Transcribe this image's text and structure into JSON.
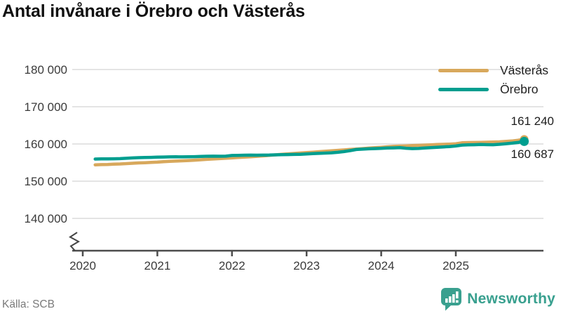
{
  "title": "Antal invånare i Örebro och Västerås",
  "source": "Källa: SCB",
  "brand": {
    "name": "Newsworthy",
    "color": "#39a08f",
    "icon": "newsworthy-chart-bubble"
  },
  "colors": {
    "vasteras": "#d8a85c",
    "orebro": "#009e8f",
    "grid": "#e4e4e4",
    "axis": "#4d4d4d",
    "tick_text": "#3a3a3a",
    "title_text": "#111111",
    "source_text": "#7a7a7a",
    "end_label_text": "#1c1c1c"
  },
  "chart_data": {
    "type": "line",
    "title": "Antal invånare i Örebro och Västerås",
    "xlabel": "",
    "ylabel": "",
    "x_unit": "month",
    "x_start": "2020-02",
    "x_end": "2025-11",
    "x_tick_labels": [
      "2020",
      "2021",
      "2022",
      "2023",
      "2024",
      "2025"
    ],
    "y_ticks": [
      180000,
      170000,
      160000,
      150000,
      140000
    ],
    "y_tick_labels": [
      "180 000",
      "170 000",
      "160 000",
      "150 000",
      "140 000"
    ],
    "ylim": [
      138000,
      182000
    ],
    "axis_break": true,
    "grid": "horizontal",
    "legend_position": "top-right",
    "end_labels": {
      "vasteras": "161 240",
      "orebro": "160 687"
    },
    "series": [
      {
        "name": "Västerås",
        "color": "#d8a85c",
        "final_value": 161240,
        "values": [
          154400,
          154450,
          154500,
          154560,
          154630,
          154720,
          154820,
          154900,
          154970,
          155040,
          155120,
          155250,
          155320,
          155400,
          155470,
          155550,
          155640,
          155750,
          155870,
          155960,
          156050,
          156150,
          156250,
          156350,
          156450,
          156560,
          156680,
          156800,
          156930,
          157070,
          157210,
          157340,
          157460,
          157570,
          157680,
          157800,
          157920,
          158040,
          158160,
          158280,
          158400,
          158520,
          158640,
          158760,
          158880,
          159000,
          159120,
          159250,
          159350,
          159430,
          159500,
          159570,
          159630,
          159700,
          159780,
          159850,
          159910,
          159970,
          160050,
          160330,
          160370,
          160400,
          160430,
          160470,
          160510,
          160570,
          160670,
          160800,
          161000,
          161240
        ]
      },
      {
        "name": "Örebro",
        "color": "#009e8f",
        "final_value": 160687,
        "values": [
          155950,
          155990,
          156000,
          156020,
          156060,
          156150,
          156250,
          156320,
          156360,
          156400,
          156450,
          156500,
          156520,
          156540,
          156530,
          156550,
          156580,
          156650,
          156700,
          156720,
          156700,
          156720,
          156900,
          156950,
          156980,
          157000,
          156980,
          157000,
          157020,
          157080,
          157130,
          157160,
          157180,
          157220,
          157300,
          157400,
          157480,
          157550,
          157620,
          157750,
          157950,
          158200,
          158500,
          158600,
          158700,
          158750,
          158820,
          158900,
          158950,
          159000,
          158850,
          158750,
          158800,
          158900,
          159000,
          159100,
          159200,
          159300,
          159450,
          159700,
          159750,
          159800,
          159850,
          159820,
          159800,
          159900,
          160050,
          160200,
          160400,
          160687
        ]
      }
    ]
  }
}
